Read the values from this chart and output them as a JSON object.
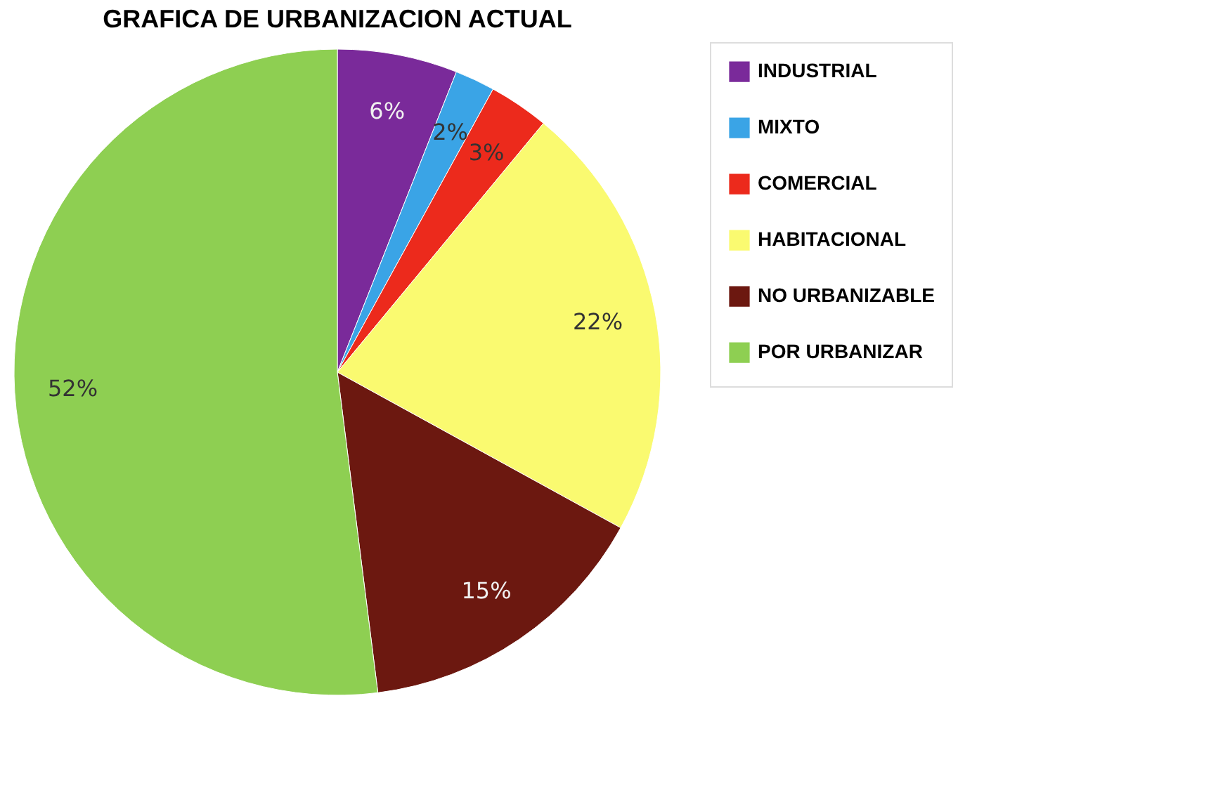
{
  "chart_data": {
    "type": "pie",
    "title": "GRAFICA  DE  URBANIZACION ACTUAL",
    "categories": [
      "INDUSTRIAL",
      "MIXTO",
      "COMERCIAL",
      "HABITACIONAL",
      "NO URBANIZABLE",
      "POR URBANIZAR"
    ],
    "values": [
      6,
      2,
      3,
      22,
      15,
      52
    ],
    "colors": [
      "#7a2a9a",
      "#3aa4e6",
      "#ec2a1c",
      "#fafa70",
      "#6c1810",
      "#8ecf52"
    ],
    "value_labels": [
      "6%",
      "2%",
      "3%",
      "22%",
      "15%",
      "52%"
    ],
    "legend": "right"
  }
}
